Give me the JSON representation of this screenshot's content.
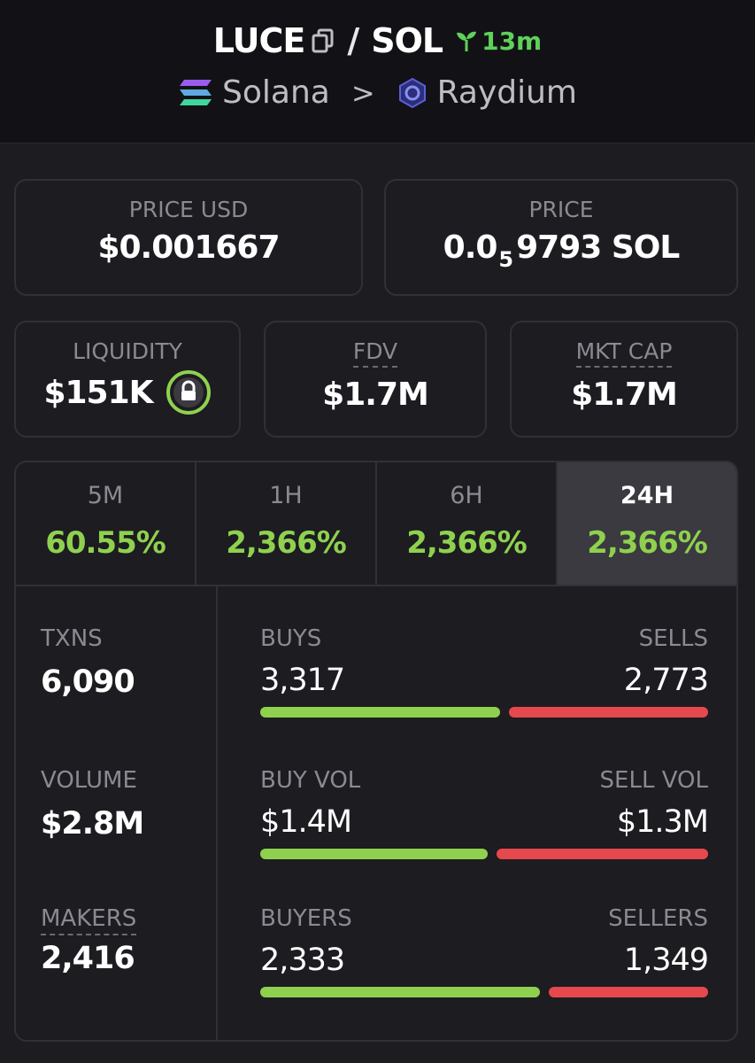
{
  "pair": {
    "base": "LUCE",
    "separator": "/",
    "quote": "SOL",
    "age": "13m",
    "chain": "Solana",
    "chevron": ">",
    "dex": "Raydium"
  },
  "price_usd": {
    "label": "PRICE USD",
    "value": "$0.001667"
  },
  "price_native": {
    "label": "PRICE",
    "prefix": "0.0",
    "zeros_sub": "5",
    "digits": "9793",
    "unit": "SOL"
  },
  "liquidity": {
    "label": "LIQUIDITY",
    "value": "$151K"
  },
  "fdv": {
    "label": "FDV",
    "value": "$1.7M"
  },
  "mkt_cap": {
    "label": "MKT CAP",
    "value": "$1.7M"
  },
  "timeframes": [
    {
      "label": "5M",
      "change": "60.55%"
    },
    {
      "label": "1H",
      "change": "2,366%"
    },
    {
      "label": "6H",
      "change": "2,366%"
    },
    {
      "label": "24H",
      "change": "2,366%"
    }
  ],
  "txns": {
    "label": "TXNS",
    "value": "6,090"
  },
  "volume": {
    "label": "VOLUME",
    "value": "$2.8M"
  },
  "makers": {
    "label": "MAKERS",
    "value": "2,416"
  },
  "buys_sells": {
    "buy_label": "BUYS",
    "buy_value": "3,317",
    "sell_label": "SELLS",
    "sell_value": "2,773",
    "buy_fraction": 0.545
  },
  "vol_split": {
    "buy_label": "BUY VOL",
    "buy_value": "$1.4M",
    "sell_label": "SELL VOL",
    "sell_value": "$1.3M",
    "buy_fraction": 0.518
  },
  "buyers_sellers": {
    "buy_label": "BUYERS",
    "buy_value": "2,333",
    "sell_label": "SELLERS",
    "sell_value": "1,349",
    "buy_fraction": 0.634
  },
  "colors": {
    "green": "#8fd14f",
    "red": "#e5484d",
    "bg": "#1c1c21"
  }
}
